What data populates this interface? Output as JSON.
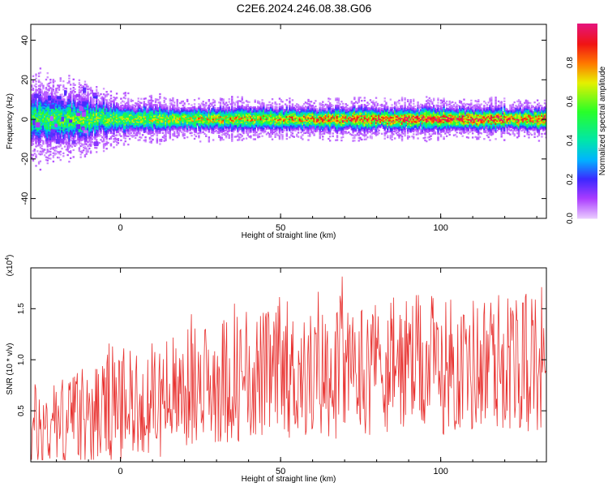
{
  "title": "C2E6.2024.246.08.38.G06",
  "chart_data": [
    {
      "type": "heatmap",
      "xlabel": "Height of straight line (km)",
      "ylabel": "Frequency (Hz)",
      "xlim": [
        -28,
        133
      ],
      "ylim": [
        -50,
        48
      ],
      "xticks": [
        0,
        50,
        100
      ],
      "yticks": [
        -40,
        -20,
        0,
        20,
        40
      ],
      "colorbar": {
        "label": "Normalized spectral amplitude",
        "range": [
          0,
          1
        ],
        "ticks": [
          0,
          0.2,
          0.4,
          0.6,
          0.8
        ],
        "tick_labels": [
          "0.0",
          "0.2",
          "0.4",
          "0.6",
          "0.8"
        ]
      },
      "band": {
        "center_frequency_hz": 0,
        "description_points": [
          {
            "x": -25,
            "halfwidth": 9,
            "amp": 0.55
          },
          {
            "x": -15,
            "halfwidth": 8,
            "amp": 0.6
          },
          {
            "x": 0,
            "halfwidth": 5,
            "amp": 0.65
          },
          {
            "x": 25,
            "halfwidth": 4,
            "amp": 0.75
          },
          {
            "x": 50,
            "halfwidth": 4,
            "amp": 0.8
          },
          {
            "x": 75,
            "halfwidth": 4,
            "amp": 0.9
          },
          {
            "x": 100,
            "halfwidth": 4,
            "amp": 0.95
          },
          {
            "x": 130,
            "halfwidth": 4,
            "amp": 0.95
          }
        ]
      }
    },
    {
      "type": "line",
      "xlabel": "Height of straight line (km)",
      "ylabel": "SNR (10 * v/v)",
      "scale_label": "(x10",
      "scale_exponent": "4",
      "scale_suffix": ")",
      "xlim": [
        -28,
        133
      ],
      "ylim": [
        0,
        1.9
      ],
      "xticks": [
        0,
        50,
        100
      ],
      "yticks": [
        0.5,
        1.0,
        1.5
      ],
      "ytick_labels": [
        "0.5",
        "1.0",
        "1.5"
      ],
      "color": "#e8312f",
      "series": [
        {
          "x": [
            -28,
            -20,
            -10,
            0,
            10,
            20,
            30,
            40,
            50,
            60,
            70,
            80,
            90,
            100,
            110,
            120,
            133
          ],
          "y": [
            0.3,
            0.35,
            0.45,
            0.55,
            0.6,
            0.7,
            0.8,
            0.85,
            0.85,
            0.85,
            0.9,
            0.95,
            0.95,
            0.95,
            0.95,
            1.0,
            0.95
          ]
        }
      ]
    }
  ]
}
